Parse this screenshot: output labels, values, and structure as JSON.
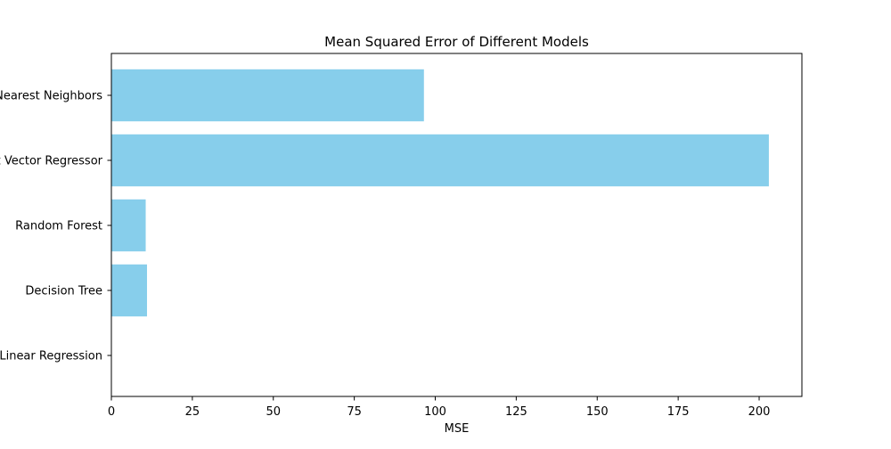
{
  "chart_data": {
    "type": "bar",
    "orientation": "horizontal",
    "title": "Mean Squared Error of Different Models",
    "xlabel": "MSE",
    "ylabel": "",
    "categories": [
      "Linear Regression",
      "Decision Tree",
      "Random Forest",
      "Support Vector Regressor",
      "K-Nearest Neighbors"
    ],
    "values": [
      0.0,
      11.0,
      10.6,
      203.0,
      96.5
    ],
    "xlim": [
      0,
      213.2
    ],
    "xticks": [
      0,
      25,
      50,
      75,
      100,
      125,
      150,
      175,
      200
    ],
    "bar_color": "#87ceeb",
    "grid": false,
    "legend": "none"
  }
}
